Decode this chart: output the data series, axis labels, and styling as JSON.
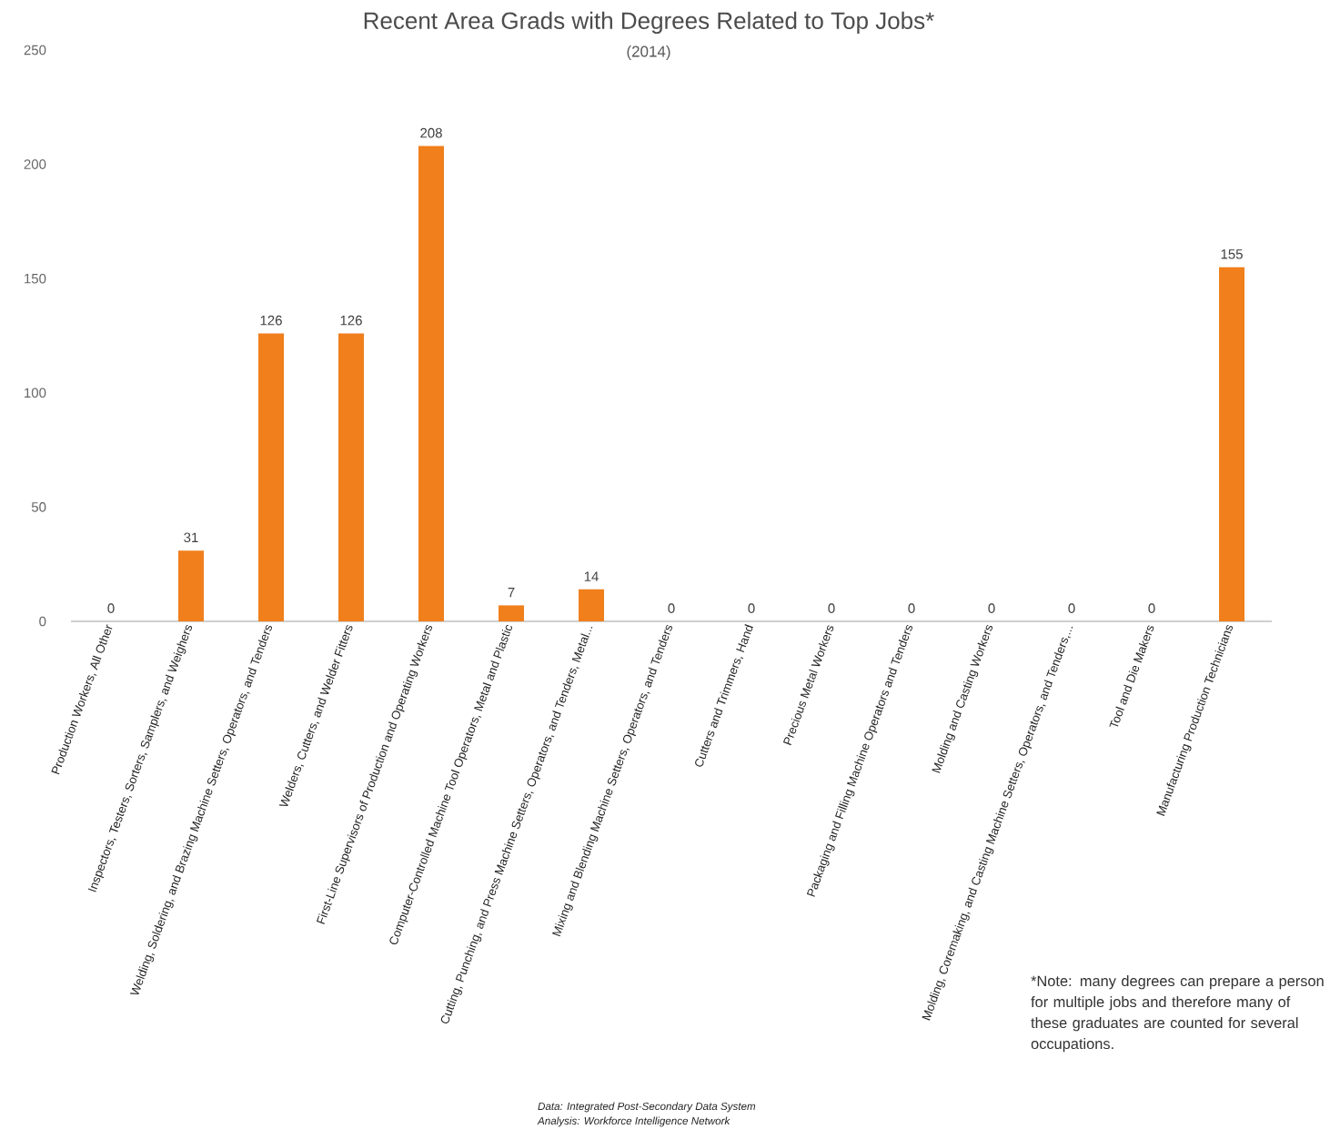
{
  "chart_data": {
    "type": "bar",
    "title": "Recent Area Grads with Degrees Related to Top Jobs*",
    "subtitle": "(2014)",
    "categories": [
      "Production Workers, All Other",
      "Inspectors, Testers, Sorters, Samplers, and Weighers",
      "Welding, Soldering, and Brazing Machine Setters, Operators, and Tenders",
      "Welders, Cutters, and Welder Fitters",
      "First-Line Supervisors of Production and Operating Workers",
      "Computer-Controlled Machine Tool Operators, Metal and Plastic",
      "Cutting, Punching, and Press Machine Setters, Operators, and Tenders, Metal...",
      "Mixing and Blending Machine Setters, Operators, and Tenders",
      "Cutters and Trimmers, Hand",
      "Precious Metal Workers",
      "Packaging and Filling Machine Operators and Tenders",
      "Molding and Casting Workers",
      "Molding, Coremaking, and Casting Machine Setters, Operators, and Tenders,...",
      "Tool and Die Makers",
      "Manufacturing Production Technicians"
    ],
    "values": [
      0,
      31,
      126,
      126,
      208,
      7,
      14,
      0,
      0,
      0,
      0,
      0,
      0,
      0,
      155
    ],
    "color": "#f07f1c",
    "ylim": [
      0,
      250
    ],
    "yticks": [
      0,
      50,
      100,
      150,
      200,
      250
    ],
    "data_labels": true,
    "grid": false,
    "annotations": [
      "*Note: many degrees can prepare a person for multiple jobs and therefore many of these graduates are counted for several occupations.",
      "Data: Integrated Post-Secondary Data System",
      "Analysis: Workforce Intelligence Network"
    ]
  }
}
